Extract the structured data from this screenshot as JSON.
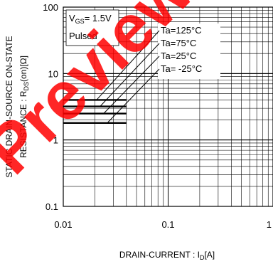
{
  "chart_data": {
    "type": "line",
    "xscale": "log",
    "yscale": "log",
    "xlim": [
      0.01,
      1
    ],
    "ylim": [
      0.1,
      100
    ],
    "x_ticks": [
      "0.01",
      "0.1",
      "1"
    ],
    "y_ticks": [
      "100",
      "10",
      "1",
      "0.1"
    ],
    "xlabel": {
      "main": "DRAIN-CURRENT : I",
      "sub": "D",
      "tail": "[A]"
    },
    "ylabel_line1": "STATIC DRAIN-SOURCE ON-STATE",
    "ylabel_line2": {
      "main": "RESISTANCE : R",
      "sub": "DS",
      "tail": "(on)[Ω]"
    },
    "conditions": {
      "vgs_main": "V",
      "vgs_sub": "GS",
      "vgs_tail": "= 1.5V",
      "mode": "Pulsed"
    },
    "grid": true,
    "series": [
      {
        "name": "Ta=125°C",
        "x": [
          0.01,
          0.04
        ],
        "y": [
          4.0,
          4.0
        ]
      },
      {
        "name": "Ta=75°C",
        "x": [
          0.01,
          0.04
        ],
        "y": [
          3.2,
          3.2
        ]
      },
      {
        "name": "Ta=25°C",
        "x": [
          0.01,
          0.04
        ],
        "y": [
          2.5,
          2.5
        ]
      },
      {
        "name": "Ta= -25°C",
        "x": [
          0.01,
          0.04
        ],
        "y": [
          1.8,
          1.8
        ]
      }
    ],
    "legend_position": "top-right",
    "watermark": "Preview"
  }
}
